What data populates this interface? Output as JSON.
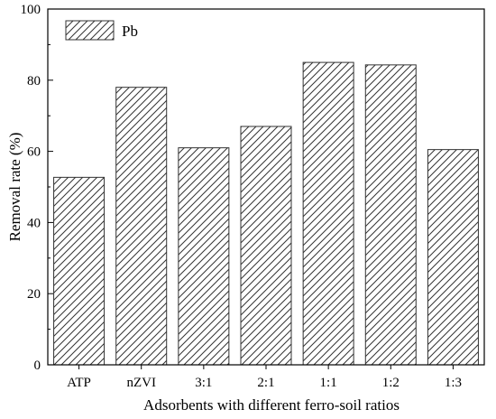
{
  "chart_data": {
    "type": "bar",
    "categories": [
      "ATP",
      "nZVI",
      "3:1",
      "2:1",
      "1:1",
      "1:2",
      "1:3"
    ],
    "series": [
      {
        "name": "Pb",
        "values": [
          52.7,
          78.0,
          61.0,
          67.0,
          85.0,
          84.3,
          60.5
        ]
      }
    ],
    "xlabel": "Adsorbents with different ferro-soil ratios",
    "ylabel": "Removal rate (%)",
    "ylim": [
      0,
      100
    ],
    "yticks": [
      0,
      20,
      40,
      60,
      80,
      100
    ],
    "legend_position": "top-left",
    "bar_fill": "hatched",
    "grid": false,
    "colors": {
      "bar_stroke": "#333333",
      "axis": "#000000",
      "background": "#ffffff"
    }
  }
}
